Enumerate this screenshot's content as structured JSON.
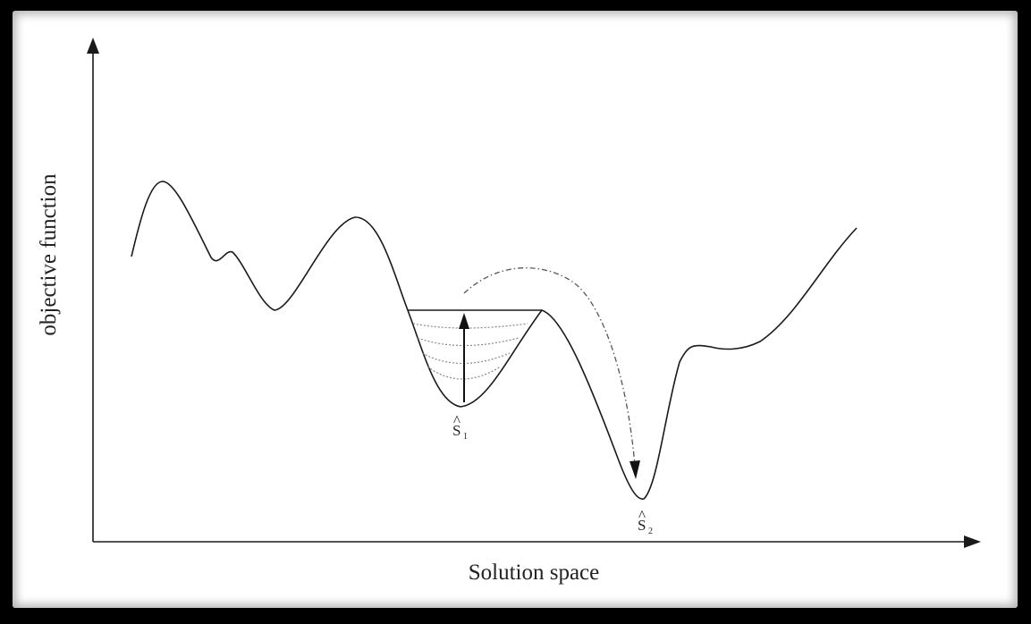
{
  "diagram": {
    "x_axis_label": "Solution space",
    "y_axis_label": "objective function",
    "points": [
      {
        "letter": "S",
        "subscript": "1"
      },
      {
        "letter": "S",
        "subscript": "2"
      }
    ],
    "hat_symbol": "^",
    "colors": {
      "curve": "#1a1a1a",
      "dotted": "#888888",
      "background": "#ffffff",
      "frame": "#000000"
    }
  }
}
